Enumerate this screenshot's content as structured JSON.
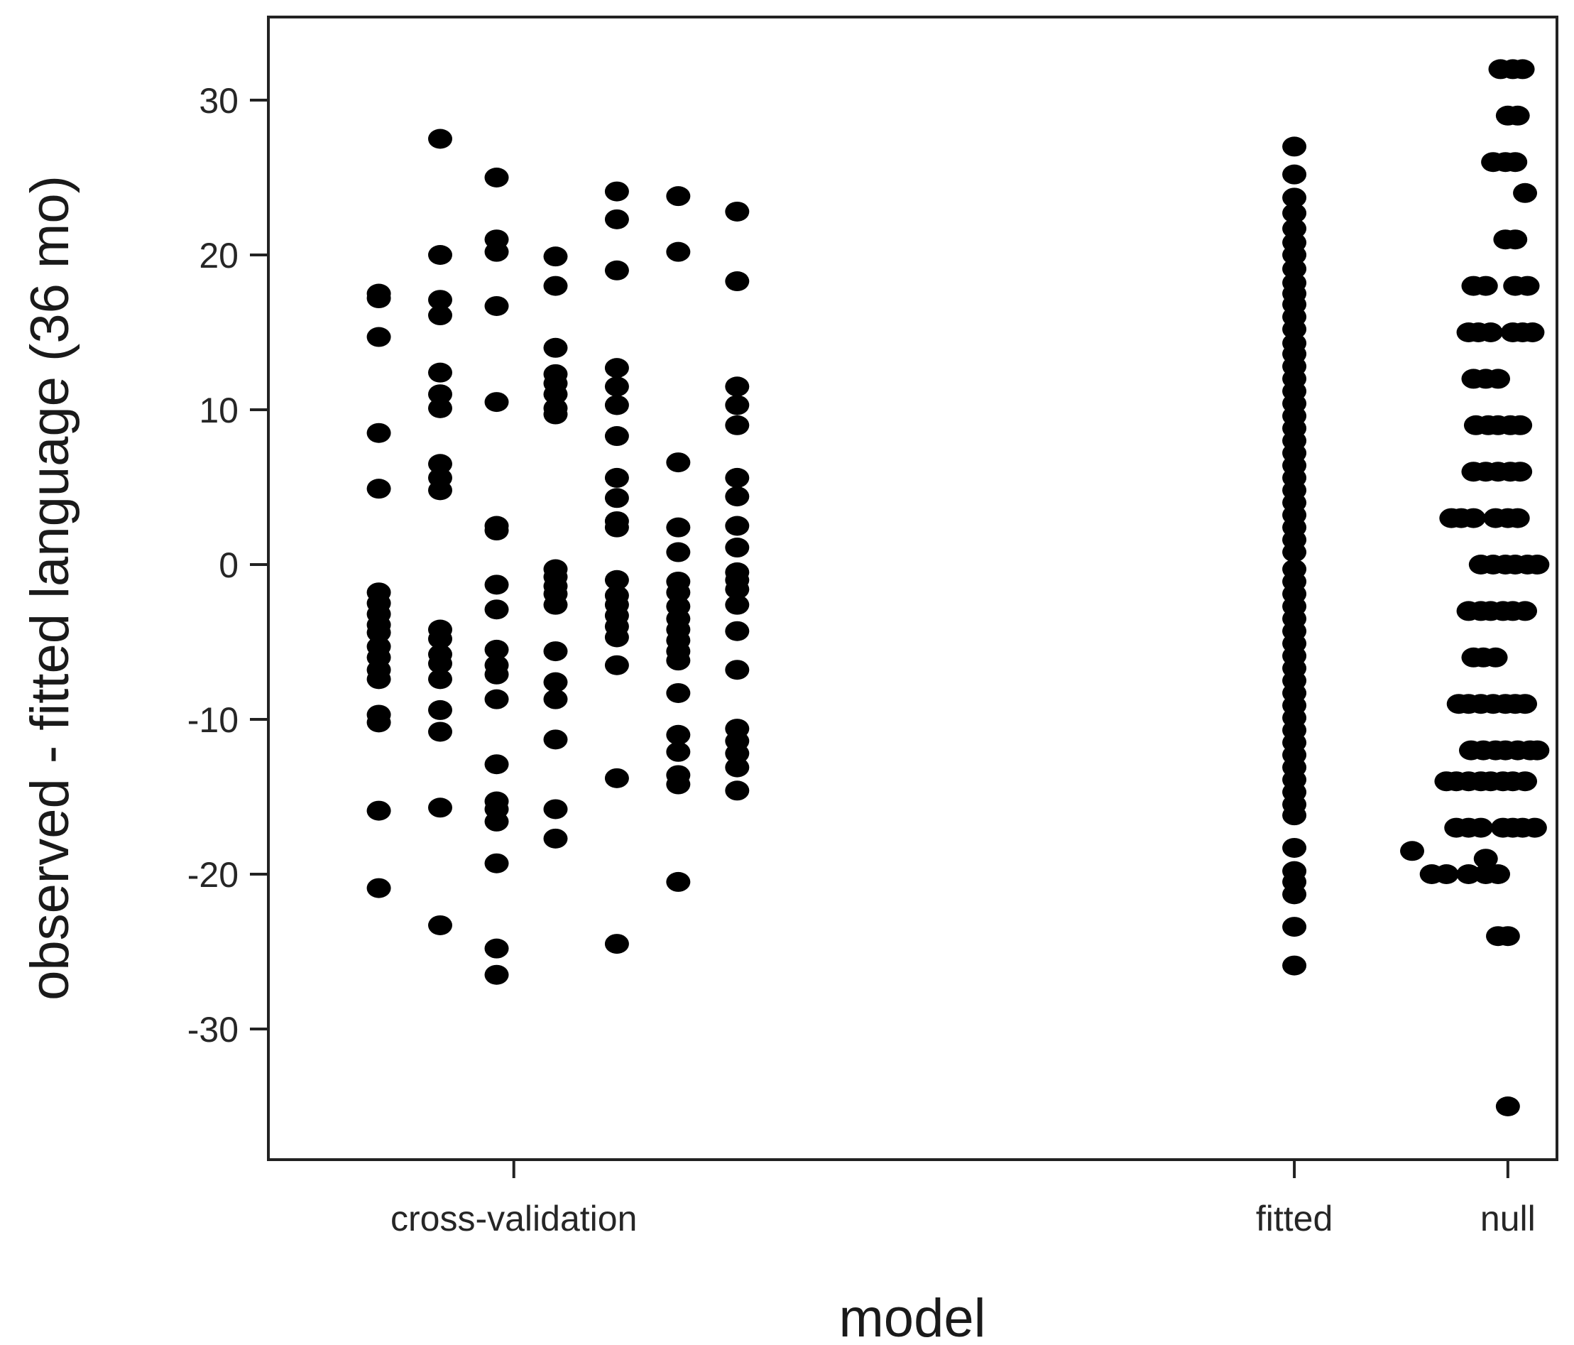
{
  "chart_data": {
    "type": "scatter",
    "xlabel": "model",
    "ylabel": "observed - fitted language (36 mo)",
    "ylim": [
      -38,
      35
    ],
    "yticks": [
      30,
      20,
      10,
      0,
      -10,
      -20,
      -30
    ],
    "grid": false,
    "legend": "none",
    "marker_color": "#000000",
    "categories": [
      "cross-validation",
      "fitted",
      "null"
    ],
    "groups": [
      {
        "category": "cross-validation",
        "subgroups": [
          {
            "x": 0.45,
            "values": [
              17.5,
              17.2,
              14.7,
              8.5,
              4.9,
              -1.8,
              -2.5,
              -3.2,
              -3.9,
              -4.4,
              -5.3,
              -6.0,
              -6.8,
              -7.4,
              -9.7,
              -10.2,
              -15.9,
              -20.9
            ]
          },
          {
            "x": 0.7,
            "values": [
              27.5,
              20.0,
              17.1,
              16.1,
              12.4,
              11.0,
              10.1,
              6.5,
              5.6,
              4.8,
              -4.2,
              -4.8,
              -5.8,
              -6.4,
              -7.4,
              -9.4,
              -10.8,
              -15.7,
              -23.3
            ]
          },
          {
            "x": 0.93,
            "values": [
              25.0,
              21.0,
              20.2,
              16.7,
              10.5,
              2.5,
              2.2,
              -1.3,
              -2.9,
              -5.5,
              -6.5,
              -7.1,
              -8.7,
              -12.9,
              -15.3,
              -15.8,
              -16.6,
              -19.3,
              -24.8,
              -26.5
            ]
          },
          {
            "x": 1.17,
            "values": [
              19.9,
              18.0,
              14.0,
              12.3,
              11.7,
              11.0,
              10.1,
              9.7,
              -0.3,
              -0.8,
              -1.4,
              -1.9,
              -2.6,
              -5.6,
              -7.6,
              -8.7,
              -11.3,
              -15.8,
              -17.7
            ]
          },
          {
            "x": 1.42,
            "values": [
              24.1,
              22.3,
              19.0,
              12.7,
              11.5,
              10.3,
              8.3,
              5.6,
              4.3,
              2.8,
              2.4,
              -1.0,
              -2.0,
              -2.6,
              -3.3,
              -4.0,
              -4.7,
              -6.5,
              -13.8,
              -24.5
            ]
          },
          {
            "x": 1.67,
            "values": [
              23.8,
              20.2,
              6.6,
              2.4,
              0.8,
              -1.1,
              -1.8,
              -2.7,
              -3.5,
              -4.2,
              -4.9,
              -5.6,
              -6.2,
              -8.3,
              -11.0,
              -12.1,
              -13.6,
              -14.2,
              -20.5
            ]
          },
          {
            "x": 1.91,
            "values": [
              22.8,
              18.3,
              11.5,
              10.3,
              9.0,
              5.6,
              4.4,
              2.5,
              1.1,
              -0.5,
              -1.0,
              -1.6,
              -2.6,
              -4.3,
              -6.8,
              -10.6,
              -11.4,
              -12.2,
              -13.1,
              -14.6
            ]
          }
        ]
      },
      {
        "category": "fitted",
        "subgroups": [
          {
            "x": 4.18,
            "values": [
              27.0,
              25.2,
              23.7,
              22.7,
              21.7,
              20.8,
              20.0,
              19.1,
              18.2,
              17.5,
              16.8,
              16.0,
              15.2,
              14.3,
              13.6,
              12.8,
              12.0,
              11.2,
              10.4,
              9.6,
              8.8,
              8.0,
              7.2,
              6.4,
              5.6,
              4.8,
              4.0,
              3.2,
              2.4,
              1.6,
              0.8,
              -0.3,
              -1.1,
              -1.9,
              -2.7,
              -3.5,
              -4.3,
              -5.1,
              -5.9,
              -6.7,
              -7.5,
              -8.3,
              -9.1,
              -9.9,
              -10.7,
              -11.5,
              -12.3,
              -13.1,
              -13.9,
              -14.7,
              -15.5,
              -16.2,
              -18.3,
              -19.8,
              -20.5,
              -21.3,
              -23.4,
              -25.9
            ]
          }
        ]
      },
      {
        "category": "null",
        "subgroups": [
          {
            "x": 5.05,
            "values": [
              32,
              29,
              26,
              24,
              21,
              18,
              15,
              12,
              9,
              6,
              3,
              0,
              -3,
              -6,
              -9,
              -12,
              -14,
              -17,
              -19,
              -20,
              -24,
              -35
            ]
          }
        ],
        "points": [
          [
            5.02,
            32
          ],
          [
            5.07,
            32
          ],
          [
            5.11,
            32
          ],
          [
            5.05,
            29
          ],
          [
            5.09,
            29
          ],
          [
            4.99,
            26
          ],
          [
            5.04,
            26
          ],
          [
            5.08,
            26
          ],
          [
            5.12,
            24
          ],
          [
            5.04,
            21
          ],
          [
            5.08,
            21
          ],
          [
            4.91,
            18
          ],
          [
            4.96,
            18
          ],
          [
            5.08,
            18
          ],
          [
            5.13,
            18
          ],
          [
            4.89,
            15
          ],
          [
            4.93,
            15
          ],
          [
            4.98,
            15
          ],
          [
            5.07,
            15
          ],
          [
            5.11,
            15
          ],
          [
            5.15,
            15
          ],
          [
            4.91,
            12
          ],
          [
            4.96,
            12
          ],
          [
            5.01,
            12
          ],
          [
            4.92,
            9
          ],
          [
            4.97,
            9
          ],
          [
            5.01,
            9
          ],
          [
            5.06,
            9
          ],
          [
            5.1,
            9
          ],
          [
            4.91,
            6
          ],
          [
            4.96,
            6
          ],
          [
            5.01,
            6
          ],
          [
            5.06,
            6
          ],
          [
            5.1,
            6
          ],
          [
            4.82,
            3
          ],
          [
            4.86,
            3
          ],
          [
            4.91,
            3
          ],
          [
            5.0,
            3
          ],
          [
            5.05,
            3
          ],
          [
            5.09,
            3
          ],
          [
            4.94,
            0
          ],
          [
            4.99,
            0
          ],
          [
            5.04,
            0
          ],
          [
            5.08,
            0
          ],
          [
            5.13,
            0
          ],
          [
            5.17,
            0
          ],
          [
            4.89,
            -3
          ],
          [
            4.94,
            -3
          ],
          [
            4.98,
            -3
          ],
          [
            5.03,
            -3
          ],
          [
            5.07,
            -3
          ],
          [
            5.12,
            -3
          ],
          [
            4.91,
            -6
          ],
          [
            4.95,
            -6
          ],
          [
            5.0,
            -6
          ],
          [
            4.85,
            -9
          ],
          [
            4.89,
            -9
          ],
          [
            4.94,
            -9
          ],
          [
            4.99,
            -9
          ],
          [
            5.04,
            -9
          ],
          [
            5.08,
            -9
          ],
          [
            5.12,
            -9
          ],
          [
            4.9,
            -12
          ],
          [
            4.95,
            -12
          ],
          [
            5.0,
            -12
          ],
          [
            5.04,
            -12
          ],
          [
            5.09,
            -12
          ],
          [
            5.14,
            -12
          ],
          [
            5.17,
            -12
          ],
          [
            4.8,
            -14
          ],
          [
            4.84,
            -14
          ],
          [
            4.89,
            -14
          ],
          [
            4.94,
            -14
          ],
          [
            4.98,
            -14
          ],
          [
            5.03,
            -14
          ],
          [
            5.07,
            -14
          ],
          [
            5.12,
            -14
          ],
          [
            4.84,
            -17
          ],
          [
            4.89,
            -17
          ],
          [
            4.94,
            -17
          ],
          [
            5.03,
            -17
          ],
          [
            5.07,
            -17
          ],
          [
            5.11,
            -17
          ],
          [
            5.16,
            -17
          ],
          [
            4.66,
            -18.5
          ],
          [
            4.96,
            -19
          ],
          [
            4.74,
            -20
          ],
          [
            4.8,
            -20
          ],
          [
            4.89,
            -20
          ],
          [
            4.96,
            -20
          ],
          [
            5.01,
            -20
          ],
          [
            5.01,
            -24
          ],
          [
            5.05,
            -24
          ],
          [
            5.05,
            -35
          ]
        ]
      }
    ],
    "category_positions": [
      1.0,
      4.18,
      5.05
    ],
    "xlim": [
      0.0,
      5.25
    ]
  }
}
